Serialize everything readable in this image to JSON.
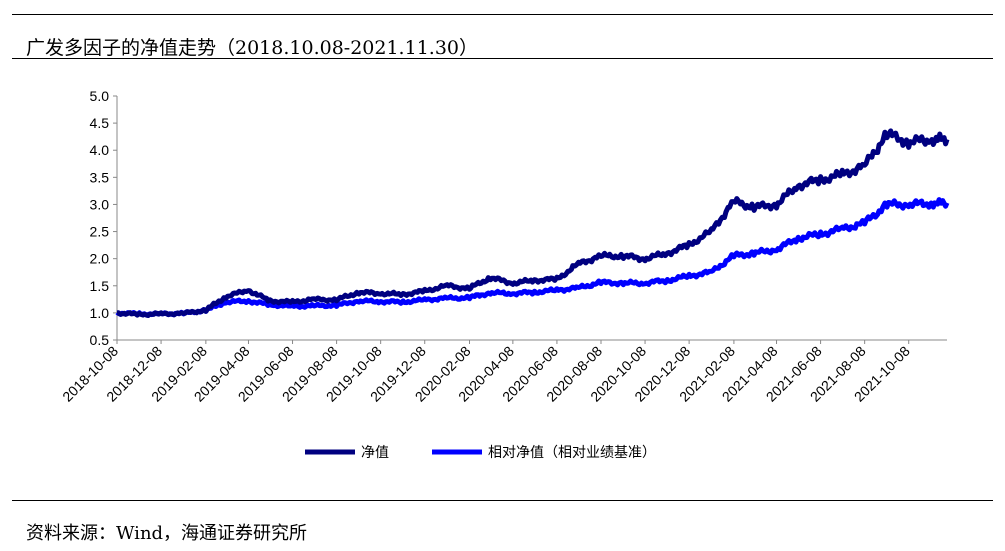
{
  "title": "广发多因子的净值走势（2018.10.08-2021.11.30）",
  "source": "资料来源：Wind，海通证券研究所",
  "chart_data": {
    "type": "line",
    "title": "广发多因子的净值走势（2018.10.08-2021.11.30）",
    "xlabel": "",
    "ylabel": "",
    "ylim": [
      0.5,
      5.0
    ],
    "yticks": [
      "0.5",
      "1.0",
      "1.5",
      "2.0",
      "2.5",
      "3.0",
      "3.5",
      "4.0",
      "4.5",
      "5.0"
    ],
    "xticks": [
      "2018-10-08",
      "2018-12-08",
      "2019-02-08",
      "2019-04-08",
      "2019-06-08",
      "2019-08-08",
      "2019-10-08",
      "2019-12-08",
      "2020-02-08",
      "2020-04-08",
      "2020-06-08",
      "2020-08-08",
      "2020-10-08",
      "2020-12-08",
      "2021-02-08",
      "2021-04-08",
      "2021-06-08",
      "2021-08-08",
      "2021-10-08"
    ],
    "x": [
      "2018-10-08",
      "2018-11-08",
      "2018-12-08",
      "2019-01-08",
      "2019-02-08",
      "2019-03-08",
      "2019-04-08",
      "2019-05-08",
      "2019-06-08",
      "2019-07-08",
      "2019-08-08",
      "2019-09-08",
      "2019-10-08",
      "2019-11-08",
      "2019-12-08",
      "2020-01-08",
      "2020-02-08",
      "2020-03-08",
      "2020-04-08",
      "2020-05-08",
      "2020-06-08",
      "2020-07-08",
      "2020-08-08",
      "2020-09-08",
      "2020-10-08",
      "2020-11-08",
      "2020-12-08",
      "2021-01-08",
      "2021-02-08",
      "2021-03-08",
      "2021-04-08",
      "2021-05-08",
      "2021-06-08",
      "2021-07-08",
      "2021-08-08",
      "2021-09-08",
      "2021-10-08",
      "2021-11-08",
      "2021-11-30"
    ],
    "series": [
      {
        "name": "净值",
        "color": "#000080",
        "values": [
          1.0,
          0.97,
          0.98,
          0.99,
          1.05,
          1.3,
          1.42,
          1.22,
          1.2,
          1.25,
          1.24,
          1.38,
          1.36,
          1.34,
          1.4,
          1.5,
          1.45,
          1.65,
          1.55,
          1.6,
          1.62,
          1.9,
          2.05,
          2.05,
          2.0,
          2.1,
          2.25,
          2.5,
          3.05,
          2.95,
          3.0,
          3.35,
          3.45,
          3.55,
          3.7,
          4.3,
          4.15,
          4.2,
          4.2
        ]
      },
      {
        "name": "相对净值（相对业绩基准）",
        "color": "#0000FF",
        "values": [
          1.0,
          0.98,
          0.98,
          0.99,
          1.05,
          1.2,
          1.22,
          1.15,
          1.12,
          1.13,
          1.14,
          1.22,
          1.21,
          1.2,
          1.24,
          1.27,
          1.28,
          1.37,
          1.36,
          1.38,
          1.42,
          1.46,
          1.56,
          1.55,
          1.55,
          1.6,
          1.68,
          1.75,
          2.05,
          2.1,
          2.17,
          2.38,
          2.45,
          2.55,
          2.65,
          3.0,
          3.0,
          3.02,
          3.03
        ]
      }
    ],
    "legend": "bottom"
  }
}
